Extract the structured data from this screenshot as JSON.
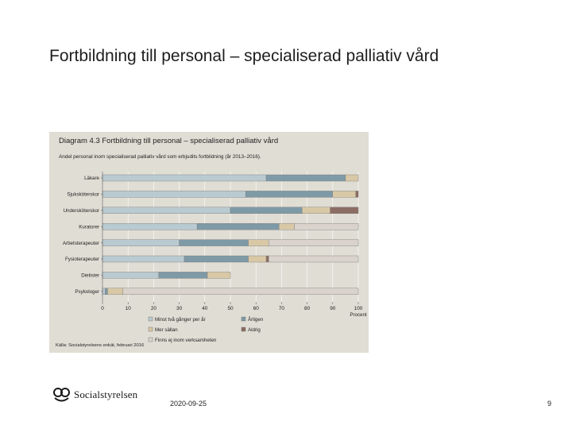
{
  "slide": {
    "title": "Fortbildning till personal – specialiserad palliativ vård",
    "date": "2020-09-25",
    "page_number": "9",
    "logo_text": "Socialstyrelsen"
  },
  "figure": {
    "heading": "Diagram 4.3 Fortbildning till personal – specialiserad palliativ vård",
    "subtitle": "Andel personal inom specialiserad palliativ vård som erbjudits fortbildning (år 2013–2016).",
    "source": "Källa: Socialstyrelsens enkät, februari 2016"
  },
  "chart_data": {
    "type": "bar",
    "orientation": "horizontal",
    "stacked": true,
    "categories": [
      "Läkare",
      "Sjuksköterskor",
      "Undersköterskor",
      "Kuratorer",
      "Arbetsterapeuter",
      "Fysioterapeuter",
      "Dietister",
      "Psykologer"
    ],
    "series": [
      {
        "name": "Minst två gånger per år",
        "color": "#b9cad0",
        "values": [
          64,
          56,
          50,
          37,
          30,
          32,
          22,
          1
        ]
      },
      {
        "name": "Årligen",
        "color": "#7f9aa7",
        "values": [
          31,
          34,
          28,
          32,
          27,
          25,
          19,
          1
        ]
      },
      {
        "name": "Mer sällan",
        "color": "#d9c8a6",
        "values": [
          5,
          9,
          11,
          6,
          8,
          7,
          9,
          6
        ]
      },
      {
        "name": "Aldrig",
        "color": "#8c6d63",
        "values": [
          0,
          1,
          11,
          0,
          0,
          1,
          0,
          0
        ]
      },
      {
        "name": "Finns ej inom verksamheten",
        "color": "#d9d3cc",
        "values": [
          0,
          0,
          0,
          25,
          35,
          35,
          0,
          92
        ]
      }
    ],
    "x_ticks": [
      "0",
      "10",
      "20",
      "30",
      "40",
      "50",
      "60",
      "70",
      "80",
      "90",
      "100"
    ],
    "xlim": [
      0,
      100
    ],
    "xlabel": "Procent",
    "legend_position": "bottom",
    "colors": {
      "bar_border": "#7a7a7a",
      "panel_bg": "#e0ddd4"
    }
  }
}
